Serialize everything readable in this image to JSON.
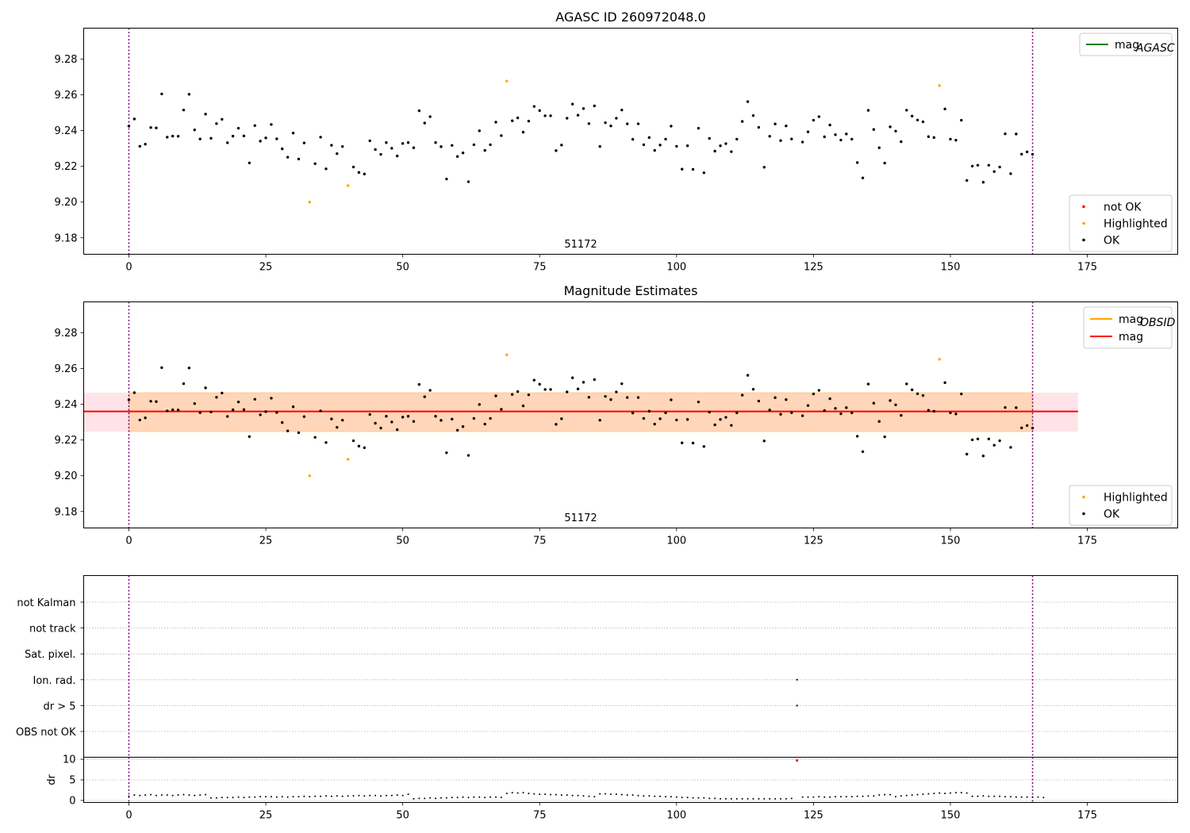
{
  "chart_data": [
    {
      "type": "scatter",
      "title": "AGASC ID 260972048.0",
      "annotation": "51172",
      "xlim": [
        -8.25,
        191.5
      ],
      "ylim": [
        9.1708,
        9.2973
      ],
      "xticks": [
        0,
        25,
        50,
        75,
        100,
        125,
        150,
        175
      ],
      "yticks": [
        9.18,
        9.2,
        9.22,
        9.24,
        9.26,
        9.28
      ],
      "vlines": [
        0,
        165
      ],
      "legend_upper": {
        "position": "top-right",
        "entries": [
          {
            "label_main": "mag",
            "label_sub": "AGASC",
            "color": "#008000",
            "kind": "line"
          }
        ]
      },
      "legend_lower": {
        "position": "bottom-right",
        "entries": [
          {
            "label": "not OK",
            "color": "#ff0000",
            "kind": "dot"
          },
          {
            "label": "Highlighted",
            "color": "#ffa500",
            "kind": "dot"
          },
          {
            "label": "OK",
            "color": "#000000",
            "kind": "dot"
          }
        ]
      },
      "series": [
        {
          "name": "OK",
          "color": "#000000",
          "points_ref": "ok"
        },
        {
          "name": "Highlighted",
          "color": "#ffa500",
          "points_ref": "highlighted"
        }
      ]
    },
    {
      "type": "scatter",
      "title": "Magnitude Estimates",
      "annotation": "51172",
      "xlim": [
        -8.25,
        191.5
      ],
      "ylim": [
        9.1708,
        9.2973
      ],
      "xticks": [
        0,
        25,
        50,
        75,
        100,
        125,
        150,
        175
      ],
      "yticks": [
        9.18,
        9.2,
        9.22,
        9.24,
        9.26,
        9.28
      ],
      "vlines": [
        0,
        165
      ],
      "mag_line": {
        "value": 9.236,
        "x_range": [
          -8.25,
          173.3
        ],
        "color": "#ff0000"
      },
      "mag_band": {
        "range": [
          9.2247,
          9.2465
        ],
        "x_range": [
          -8.25,
          173.3
        ],
        "color": "#ffc0cb"
      },
      "obsid_band": {
        "range": [
          9.2247,
          9.2465
        ],
        "x_range": [
          0,
          165
        ],
        "color": "#ffa500"
      },
      "legend_upper": {
        "position": "top-right",
        "entries": [
          {
            "label_main": "mag",
            "label_sub": "OBSID",
            "color": "#ffa500",
            "kind": "line"
          },
          {
            "label_main": "mag",
            "label_sub": "",
            "color": "#ff0000",
            "kind": "line"
          }
        ]
      },
      "legend_lower": {
        "position": "bottom-right",
        "entries": [
          {
            "label": "Highlighted",
            "color": "#ffa500",
            "kind": "dot"
          },
          {
            "label": "OK",
            "color": "#000000",
            "kind": "dot"
          }
        ]
      },
      "series": [
        {
          "name": "OK",
          "color": "#000000",
          "points_ref": "ok"
        },
        {
          "name": "Highlighted",
          "color": "#ffa500",
          "points_ref": "highlighted"
        }
      ]
    },
    {
      "type": "scatter",
      "title": "",
      "flag_categories": [
        "not Kalman",
        "not track",
        "Sat. pixel.",
        "Ion. rad.",
        "dr > 5",
        "OBS not OK"
      ],
      "flag_points": [
        {
          "x": 122,
          "flag": "Ion. rad."
        },
        {
          "x": 122,
          "flag": "dr > 5"
        }
      ],
      "xlim": [
        -8.25,
        191.5
      ],
      "xticks": [
        0,
        25,
        50,
        75,
        100,
        125,
        150,
        175
      ],
      "vlines": [
        0,
        165
      ]
    },
    {
      "type": "scatter",
      "ylabel": "dr",
      "ylim": [
        -0.5,
        10.5
      ],
      "yticks": [
        0,
        5,
        10
      ],
      "xlim": [
        -8.25,
        191.5
      ],
      "xticks": [
        0,
        25,
        50,
        75,
        100,
        125,
        150,
        175
      ],
      "vlines": [
        0,
        165
      ],
      "dr_values": [
        1.0,
        1.3,
        1.2,
        1.3,
        1.4,
        1.2,
        1.3,
        1.3,
        1.2,
        1.3,
        1.4,
        1.3,
        1.2,
        1.3,
        1.4,
        0.6,
        0.6,
        0.7,
        0.7,
        0.7,
        0.8,
        0.7,
        0.8,
        0.8,
        0.9,
        0.9,
        0.9,
        0.8,
        0.9,
        0.8,
        0.9,
        0.9,
        1.0,
        0.9,
        1.0,
        1.0,
        1.1,
        1.0,
        1.1,
        1.0,
        1.1,
        1.1,
        1.2,
        1.1,
        1.2,
        1.2,
        1.1,
        1.2,
        1.2,
        1.3,
        1.2,
        1.5,
        0.4,
        0.5,
        0.5,
        0.6,
        0.5,
        0.6,
        0.6,
        0.7,
        0.7,
        0.8,
        0.7,
        0.8,
        0.8,
        0.7,
        0.8,
        0.8,
        0.7,
        1.7,
        1.9,
        1.8,
        1.9,
        1.7,
        1.6,
        1.5,
        1.5,
        1.4,
        1.4,
        1.3,
        1.3,
        1.2,
        1.2,
        1.1,
        1.0,
        0.9,
        1.6,
        1.6,
        1.5,
        1.5,
        1.4,
        1.3,
        1.3,
        1.2,
        1.1,
        1.1,
        1.0,
        1.0,
        0.9,
        0.9,
        0.8,
        0.7,
        0.7,
        0.6,
        0.6,
        0.6,
        0.5,
        0.5,
        0.4,
        0.4,
        0.4,
        0.4,
        0.4,
        0.4,
        0.4,
        0.4,
        0.4,
        0.4,
        0.4,
        0.4,
        0.4,
        0.5,
        9.7,
        0.8,
        0.8,
        0.8,
        0.9,
        0.8,
        0.8,
        0.9,
        0.9,
        0.9,
        0.9,
        1.0,
        1.0,
        1.1,
        1.1,
        1.3,
        1.4,
        1.4,
        0.9,
        1.1,
        1.2,
        1.3,
        1.4,
        1.5,
        1.6,
        1.7,
        1.8,
        1.7,
        1.8,
        1.9,
        1.9,
        1.8,
        1.0,
        1.0,
        1.1,
        1.0,
        1.0,
        1.0,
        0.9,
        0.9,
        0.8,
        0.8,
        0.8,
        0.8,
        0.8,
        0.7
      ],
      "dr_highlight": {
        "x": 122,
        "color": "#ff0000"
      }
    }
  ],
  "mag_points": {
    "ok": [
      [
        0,
        9.2425
      ],
      [
        1,
        9.2465
      ],
      [
        2,
        9.2312
      ],
      [
        3,
        9.2324
      ],
      [
        4,
        9.2417
      ],
      [
        5,
        9.2415
      ],
      [
        6,
        9.2605
      ],
      [
        7,
        9.2363
      ],
      [
        8,
        9.2369
      ],
      [
        9,
        9.2368
      ],
      [
        10,
        9.2515
      ],
      [
        11,
        9.2603
      ],
      [
        12,
        9.2404
      ],
      [
        13,
        9.2353
      ],
      [
        14,
        9.2492
      ],
      [
        15,
        9.2357
      ],
      [
        16,
        9.2439
      ],
      [
        17,
        9.2463
      ],
      [
        18,
        9.2332
      ],
      [
        19,
        9.2369
      ],
      [
        20,
        9.2413
      ],
      [
        21,
        9.237
      ],
      [
        22,
        9.2219
      ],
      [
        23,
        9.2428
      ],
      [
        24,
        9.2341
      ],
      [
        25,
        9.2359
      ],
      [
        26,
        9.2434
      ],
      [
        27,
        9.2354
      ],
      [
        28,
        9.2298
      ],
      [
        29,
        9.2251
      ],
      [
        30,
        9.2386
      ],
      [
        31,
        9.2241
      ],
      [
        32,
        9.2331
      ],
      [
        34,
        9.2215
      ],
      [
        35,
        9.2363
      ],
      [
        36,
        9.2186
      ],
      [
        37,
        9.2318
      ],
      [
        38,
        9.2271
      ],
      [
        39,
        9.2311
      ],
      [
        41,
        9.2196
      ],
      [
        42,
        9.2166
      ],
      [
        43,
        9.2157
      ],
      [
        44,
        9.2343
      ],
      [
        45,
        9.2294
      ],
      [
        46,
        9.2267
      ],
      [
        47,
        9.2333
      ],
      [
        48,
        9.2301
      ],
      [
        49,
        9.2258
      ],
      [
        50,
        9.2328
      ],
      [
        51,
        9.2333
      ],
      [
        52,
        9.2304
      ],
      [
        53,
        9.2511
      ],
      [
        54,
        9.2442
      ],
      [
        55,
        9.2478
      ],
      [
        56,
        9.2333
      ],
      [
        57,
        9.231
      ],
      [
        58,
        9.2129
      ],
      [
        59,
        9.2317
      ],
      [
        60,
        9.2255
      ],
      [
        61,
        9.2275
      ],
      [
        62,
        9.2114
      ],
      [
        63,
        9.2321
      ],
      [
        64,
        9.2399
      ],
      [
        65,
        9.2289
      ],
      [
        66,
        9.2321
      ],
      [
        67,
        9.2447
      ],
      [
        68,
        9.2372
      ],
      [
        70,
        9.2455
      ],
      [
        71,
        9.2471
      ],
      [
        72,
        9.2391
      ],
      [
        73,
        9.2453
      ],
      [
        74,
        9.2535
      ],
      [
        75,
        9.2512
      ],
      [
        76,
        9.2483
      ],
      [
        77,
        9.2483
      ],
      [
        78,
        9.2288
      ],
      [
        79,
        9.2319
      ],
      [
        80,
        9.2469
      ],
      [
        81,
        9.2548
      ],
      [
        82,
        9.2486
      ],
      [
        83,
        9.2523
      ],
      [
        84,
        9.2439
      ],
      [
        85,
        9.2538
      ],
      [
        86,
        9.2311
      ],
      [
        87,
        9.2444
      ],
      [
        88,
        9.2426
      ],
      [
        89,
        9.2469
      ],
      [
        90,
        9.2515
      ],
      [
        91,
        9.2438
      ],
      [
        92,
        9.2351
      ],
      [
        93,
        9.2438
      ],
      [
        94,
        9.2321
      ],
      [
        95,
        9.2361
      ],
      [
        96,
        9.2289
      ],
      [
        97,
        9.2319
      ],
      [
        98,
        9.2352
      ],
      [
        99,
        9.2425
      ],
      [
        100,
        9.2312
      ],
      [
        101,
        9.2184
      ],
      [
        102,
        9.2315
      ],
      [
        103,
        9.2183
      ],
      [
        104,
        9.2413
      ],
      [
        105,
        9.2164
      ],
      [
        106,
        9.2356
      ],
      [
        107,
        9.2285
      ],
      [
        108,
        9.2315
      ],
      [
        109,
        9.2327
      ],
      [
        110,
        9.2282
      ],
      [
        111,
        9.2352
      ],
      [
        112,
        9.2451
      ],
      [
        113,
        9.2562
      ],
      [
        114,
        9.2484
      ],
      [
        115,
        9.2418
      ],
      [
        116,
        9.2195
      ],
      [
        117,
        9.2368
      ],
      [
        118,
        9.2437
      ],
      [
        119,
        9.2344
      ],
      [
        120,
        9.2426
      ],
      [
        121,
        9.2353
      ],
      [
        123,
        9.2336
      ],
      [
        124,
        9.2393
      ],
      [
        125,
        9.2458
      ],
      [
        126,
        9.2478
      ],
      [
        127,
        9.2365
      ],
      [
        128,
        9.2431
      ],
      [
        129,
        9.2377
      ],
      [
        130,
        9.2347
      ],
      [
        131,
        9.2381
      ],
      [
        132,
        9.2352
      ],
      [
        133,
        9.2221
      ],
      [
        134,
        9.2135
      ],
      [
        135,
        9.2513
      ],
      [
        136,
        9.2406
      ],
      [
        137,
        9.2304
      ],
      [
        138,
        9.2218
      ],
      [
        139,
        9.2421
      ],
      [
        140,
        9.2397
      ],
      [
        141,
        9.2338
      ],
      [
        142,
        9.2514
      ],
      [
        143,
        9.2481
      ],
      [
        144,
        9.2459
      ],
      [
        145,
        9.2449
      ],
      [
        146,
        9.2366
      ],
      [
        147,
        9.2361
      ],
      [
        149,
        9.2521
      ],
      [
        150,
        9.2352
      ],
      [
        151,
        9.2346
      ],
      [
        152,
        9.2458
      ],
      [
        153,
        9.2121
      ],
      [
        154,
        9.2201
      ],
      [
        155,
        9.2206
      ],
      [
        156,
        9.2111
      ],
      [
        157,
        9.2206
      ],
      [
        158,
        9.2171
      ],
      [
        159,
        9.2196
      ],
      [
        160,
        9.2382
      ],
      [
        161,
        9.2159
      ],
      [
        162,
        9.2381
      ],
      [
        163,
        9.2268
      ],
      [
        164,
        9.2281
      ],
      [
        165,
        9.2267
      ]
    ],
    "highlighted": [
      [
        33,
        9.2
      ],
      [
        40,
        9.2092
      ],
      [
        69,
        9.2677
      ],
      [
        148,
        9.2652
      ]
    ]
  }
}
